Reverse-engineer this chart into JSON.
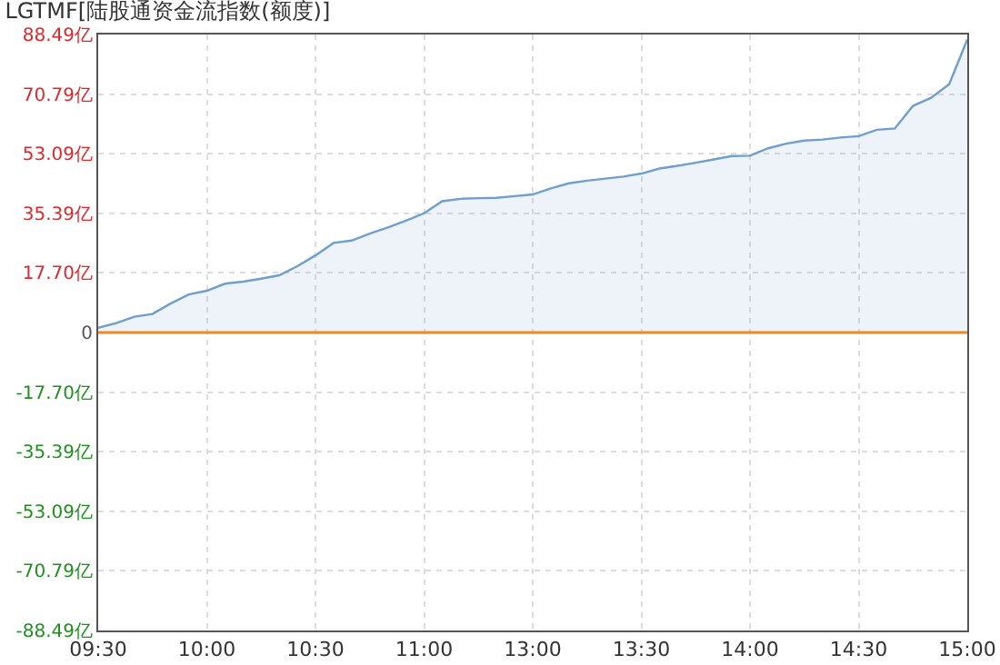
{
  "chart_data": {
    "type": "area",
    "title": "LGTMF[陆股通资金流指数(额度)]",
    "categories": [
      "09:30",
      null,
      null,
      null,
      null,
      null,
      "10:00",
      null,
      null,
      null,
      null,
      null,
      "10:30",
      null,
      null,
      null,
      null,
      null,
      "11:00",
      null,
      null,
      null,
      null,
      null,
      "13:00",
      null,
      null,
      null,
      null,
      null,
      "13:30",
      null,
      null,
      null,
      null,
      null,
      "14:00",
      null,
      null,
      null,
      null,
      null,
      "14:30",
      null,
      null,
      null,
      null,
      null,
      "15:00"
    ],
    "series": [
      {
        "color": "#6e9fd0",
        "values": [
          1.4,
          2.8,
          4.7,
          5.5,
          8.6,
          11.3,
          12.4,
          14.5,
          15.1,
          16,
          17,
          19.7,
          22.9,
          26.6,
          27.3,
          29.4,
          31.2,
          33.2,
          35.4,
          39,
          39.7,
          39.9,
          40,
          40.5,
          41,
          42.8,
          44.3,
          45.1,
          45.7,
          46.3,
          47.2,
          48.7,
          49.5,
          50.4,
          51.4,
          52.4,
          52.5,
          54.7,
          56.1,
          57,
          57.3,
          57.9,
          58.3,
          60.2,
          60.6,
          67.3,
          69.7,
          73.7,
          87
        ]
      }
    ],
    "ylim": [
      -88.49,
      88.49
    ],
    "yticks": [
      {
        "value": 88.49,
        "label": "88.49亿"
      },
      {
        "value": 70.79,
        "label": "70.79亿"
      },
      {
        "value": 53.09,
        "label": "53.09亿"
      },
      {
        "value": 35.39,
        "label": "35.39亿"
      },
      {
        "value": 17.7,
        "label": "17.70亿"
      },
      0,
      {
        "value": -17.7,
        "label": "-17.70亿"
      },
      {
        "value": -35.39,
        "label": "-35.39亿"
      },
      {
        "value": -53.09,
        "label": "-53.09亿"
      },
      {
        "value": -70.79,
        "label": "-70.79亿"
      },
      {
        "value": -88.49,
        "label": "-88.49亿"
      }
    ],
    "ref_lines": [
      {
        "axis": "y",
        "value": 0,
        "color": "#f08a24"
      }
    ],
    "grid": true
  }
}
